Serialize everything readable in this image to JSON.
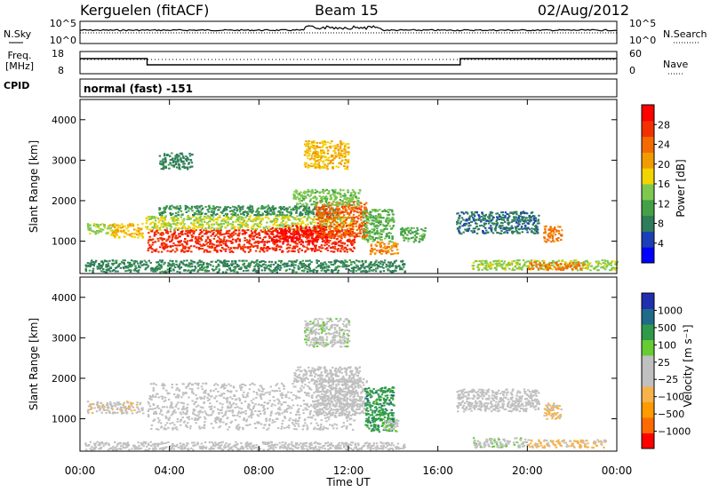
{
  "header": {
    "station": "Kerguelen (fitACF)",
    "beam": "Beam 15",
    "date": "02/Aug/2012"
  },
  "panels": {
    "nsky": {
      "left_label": "N.Sky",
      "right_label": "N.Search",
      "left_ticks": [
        "10^5",
        "10^0"
      ],
      "right_ticks": [
        "10^5",
        "10^0"
      ]
    },
    "freq": {
      "left_label_1": "Freq.",
      "left_label_2": "[MHz]",
      "left_ticks": [
        "18",
        "8"
      ],
      "right_ticks": [
        "60",
        "0"
      ],
      "right_label": "Nave"
    },
    "cpid": {
      "label": "CPID",
      "value": "normal (fast) -151"
    }
  },
  "colors": {
    "power": [
      "#0000ff",
      "#1c3fb7",
      "#2e7d5a",
      "#43a047",
      "#7ec850",
      "#f2d400",
      "#f29b00",
      "#f26a00",
      "#f23000",
      "#ff0000"
    ],
    "velocity": [
      "#ff0000",
      "#ff6a00",
      "#ff9a00",
      "#f7b24a",
      "#c0c0c0",
      "#c0c0c0",
      "#66cc33",
      "#2f9a4a",
      "#1f6a8a",
      "#1f2fb0"
    ],
    "ground_scatter": "#c0c0c0"
  },
  "chart_data": [
    {
      "type": "heatmap",
      "title": "",
      "xlabel": "Time UT",
      "ylabel": "Slant Range [km]",
      "xlim": [
        "00:00",
        "24:00"
      ],
      "ylim": [
        200,
        4500
      ],
      "x_ticks": [
        "00:00",
        "04:00",
        "08:00",
        "12:00",
        "16:00",
        "20:00",
        "00:00"
      ],
      "y_ticks": [
        "1000",
        "2000",
        "3000",
        "4000"
      ],
      "colorbar": {
        "label": "Power [dB]",
        "ticks": [
          "4",
          "8",
          "12",
          "16",
          "20",
          "24",
          "28"
        ],
        "range": [
          0,
          30
        ]
      },
      "regions": [
        {
          "t0": 0.3,
          "t1": 1.5,
          "r0": 1200,
          "r1": 1450,
          "value": 14
        },
        {
          "t0": 1.3,
          "t1": 2.8,
          "r0": 1100,
          "r1": 1450,
          "value": 18
        },
        {
          "t0": 3.0,
          "t1": 12.3,
          "r0": 750,
          "r1": 1300,
          "value": 26
        },
        {
          "t0": 2.9,
          "t1": 12.2,
          "r0": 1300,
          "r1": 1650,
          "value": 15
        },
        {
          "t0": 3.5,
          "t1": 11.5,
          "r0": 1650,
          "r1": 1900,
          "value": 9
        },
        {
          "t0": 10.5,
          "t1": 12.8,
          "r0": 1100,
          "r1": 2000,
          "value": 23
        },
        {
          "t0": 8.5,
          "t1": 11.0,
          "r0": 1000,
          "r1": 1400,
          "value": 28
        },
        {
          "t0": 12.9,
          "t1": 14.2,
          "r0": 700,
          "r1": 1000,
          "value": 21
        },
        {
          "t0": 12.6,
          "t1": 14.0,
          "r0": 1000,
          "r1": 1800,
          "value": 12
        },
        {
          "t0": 14.3,
          "t1": 15.4,
          "r0": 1000,
          "r1": 1350,
          "value": 11
        },
        {
          "t0": 16.8,
          "t1": 20.5,
          "r0": 1200,
          "r1": 1750,
          "value": 7
        },
        {
          "t0": 20.7,
          "t1": 21.5,
          "r0": 1000,
          "r1": 1400,
          "value": 22
        },
        {
          "t0": 17.5,
          "t1": 24.0,
          "r0": 300,
          "r1": 550,
          "value": 14
        },
        {
          "t0": 20.0,
          "t1": 22.5,
          "r0": 300,
          "r1": 500,
          "value": 22
        },
        {
          "t0": 0.2,
          "t1": 14.5,
          "r0": 250,
          "r1": 550,
          "value": 8
        },
        {
          "t0": 3.5,
          "t1": 5.0,
          "r0": 2800,
          "r1": 3200,
          "value": 8
        },
        {
          "t0": 10.0,
          "t1": 12.0,
          "r0": 2800,
          "r1": 3500,
          "value": 18
        },
        {
          "t0": 9.5,
          "t1": 12.5,
          "r0": 1900,
          "r1": 2300,
          "value": 13
        }
      ]
    },
    {
      "type": "heatmap",
      "title": "",
      "xlabel": "Time UT",
      "ylabel": "Slant Range [km]",
      "xlim": [
        "00:00",
        "24:00"
      ],
      "ylim": [
        200,
        4500
      ],
      "x_ticks": [
        "00:00",
        "04:00",
        "08:00",
        "12:00",
        "16:00",
        "20:00",
        "00:00"
      ],
      "y_ticks": [
        "1000",
        "2000",
        "3000",
        "4000"
      ],
      "colorbar": {
        "label": "Velocity [m s⁻¹]",
        "ticks": [
          "1000",
          "500",
          "100",
          "25",
          "−25",
          "−100",
          "−500",
          "−1000"
        ],
        "range": [
          -1200,
          1200
        ]
      },
      "regions": [
        {
          "t0": 0.3,
          "t1": 2.8,
          "r0": 1150,
          "r1": 1450,
          "value": -150
        },
        {
          "t0": 3.0,
          "t1": 12.3,
          "r0": 750,
          "r1": 1900,
          "value": 0
        },
        {
          "t0": 10.5,
          "t1": 12.8,
          "r0": 1100,
          "r1": 2000,
          "value": 0
        },
        {
          "t0": 12.7,
          "t1": 14.0,
          "r0": 700,
          "r1": 1800,
          "value": 600
        },
        {
          "t0": 13.5,
          "t1": 14.2,
          "r0": 700,
          "r1": 1000,
          "value": 200
        },
        {
          "t0": 16.8,
          "t1": 20.5,
          "r0": 1200,
          "r1": 1750,
          "value": 0
        },
        {
          "t0": 20.7,
          "t1": 21.5,
          "r0": 1000,
          "r1": 1400,
          "value": -300
        },
        {
          "t0": 17.5,
          "t1": 20.0,
          "r0": 300,
          "r1": 550,
          "value": 150
        },
        {
          "t0": 20.0,
          "t1": 23.5,
          "r0": 300,
          "r1": 500,
          "value": -300
        },
        {
          "t0": 0.2,
          "t1": 14.5,
          "r0": 250,
          "r1": 450,
          "value": -50
        },
        {
          "t0": 10.0,
          "t1": 12.0,
          "r0": 2800,
          "r1": 3500,
          "value": 150
        },
        {
          "t0": 9.5,
          "t1": 12.5,
          "r0": 1900,
          "r1": 2300,
          "value": 50
        }
      ]
    }
  ]
}
